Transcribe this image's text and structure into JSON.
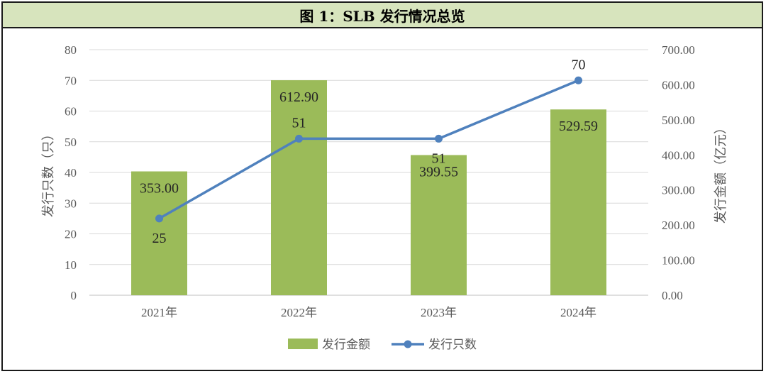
{
  "title": "图 1：SLB 发行情况总览",
  "colors": {
    "bar": "#9bbb59",
    "line": "#4f81bd",
    "title_bg": "#d7e4bd",
    "grid": "#d9d9d9"
  },
  "chart_data": {
    "type": "bar+line",
    "categories": [
      "2021年",
      "2022年",
      "2023年",
      "2024年"
    ],
    "series": [
      {
        "name": "发行金额",
        "type": "bar",
        "axis": "right",
        "values": [
          353.0,
          612.9,
          399.55,
          529.59
        ],
        "labels": [
          "353.00",
          "612.90",
          "399.55",
          "529.59"
        ]
      },
      {
        "name": "发行只数",
        "type": "line",
        "axis": "left",
        "values": [
          25,
          51,
          51,
          70
        ],
        "labels": [
          "25",
          "51",
          "51",
          "70"
        ]
      }
    ],
    "y_left": {
      "label": "发行只数（只）",
      "min": 0,
      "max": 80,
      "ticks": [
        "0",
        "10",
        "20",
        "30",
        "40",
        "50",
        "60",
        "70",
        "80"
      ]
    },
    "y_right": {
      "label": "发行金额（亿元）",
      "min": 0,
      "max": 700,
      "ticks": [
        "0.00",
        "100.00",
        "200.00",
        "300.00",
        "400.00",
        "500.00",
        "600.00",
        "700.00"
      ]
    },
    "grid": true,
    "legend_position": "bottom"
  }
}
